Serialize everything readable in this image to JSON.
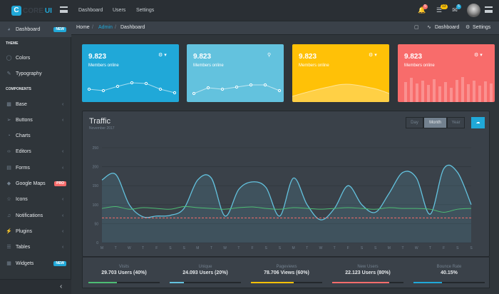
{
  "header": {
    "logo_mark": "C",
    "logo_text_1": "CORE",
    "logo_text_2": "UI",
    "nav": [
      "Dashboard",
      "Users",
      "Settings"
    ],
    "badges": {
      "bell": "5",
      "list": "13",
      "mail": "5"
    }
  },
  "sidebar": {
    "items": [
      {
        "label": "Dashboard",
        "icon": "speedometer-icon",
        "tag": "NEW",
        "tag_color": "#20a8d8"
      },
      {
        "label": "Colors",
        "icon": "drop-icon"
      },
      {
        "label": "Typography",
        "icon": "pencil-icon"
      },
      {
        "label": "Base",
        "icon": "puzzle-icon"
      },
      {
        "label": "Buttons",
        "icon": "cursor-icon"
      },
      {
        "label": "Charts",
        "icon": "pie-chart-icon"
      },
      {
        "label": "Editors",
        "icon": "code-icon"
      },
      {
        "label": "Forms",
        "icon": "note-icon"
      },
      {
        "label": "Google Maps",
        "icon": "map-icon",
        "tag": "PRO",
        "tag_color": "#f86c6b"
      },
      {
        "label": "Icons",
        "icon": "star-icon"
      },
      {
        "label": "Notifications",
        "icon": "bell-icon"
      },
      {
        "label": "Plugins",
        "icon": "energy-icon"
      },
      {
        "label": "Tables",
        "icon": "list-icon"
      },
      {
        "label": "Widgets",
        "icon": "calculator-icon",
        "tag": "NEW",
        "tag_color": "#20a8d8"
      }
    ],
    "section_theme": "THEME",
    "section_components": "COMPONENTS"
  },
  "breadcrumb": {
    "home": "Home",
    "admin": "Admin",
    "current": "Dashboard",
    "menu_dashboard": "Dashboard",
    "menu_settings": "Settings"
  },
  "cards": [
    {
      "value": "9.823",
      "label": "Members online",
      "color": "#20a8d8"
    },
    {
      "value": "9.823",
      "label": "Members online",
      "color": "#63c2de"
    },
    {
      "value": "9.823",
      "label": "Members online",
      "color": "#ffc107"
    },
    {
      "value": "9.823",
      "label": "Members online",
      "color": "#f86c6b"
    }
  ],
  "traffic": {
    "title": "Traffic",
    "subtitle": "November 2017",
    "buttons": [
      "Day",
      "Month",
      "Year"
    ],
    "active": "Month"
  },
  "chart_data": {
    "type": "line",
    "title": "Traffic",
    "x": [
      "M",
      "T",
      "W",
      "T",
      "F",
      "S",
      "S",
      "M",
      "T",
      "W",
      "T",
      "F",
      "S",
      "S",
      "M",
      "T",
      "W",
      "T",
      "F",
      "S",
      "S",
      "M",
      "T",
      "W",
      "T",
      "F",
      "S",
      "S"
    ],
    "ylim": [
      0,
      250
    ],
    "yticks": [
      0,
      50,
      100,
      150,
      200,
      250
    ],
    "series": [
      {
        "color": "#63c2de",
        "fill": true,
        "values": [
          165,
          180,
          100,
          68,
          70,
          72,
          90,
          165,
          170,
          70,
          140,
          160,
          145,
          70,
          170,
          100,
          60,
          90,
          150,
          100,
          80,
          130,
          185,
          170,
          75,
          195,
          185,
          100
        ]
      },
      {
        "color": "#4dbd74",
        "fill": false,
        "values": [
          90,
          95,
          88,
          92,
          90,
          88,
          95,
          92,
          90,
          88,
          92,
          94,
          90,
          88,
          92,
          90,
          88,
          90,
          92,
          90,
          88,
          92,
          90,
          90,
          88,
          80,
          88,
          90
        ]
      },
      {
        "color": "#f86c6b",
        "fill": false,
        "dashed": true,
        "values": [
          65,
          65,
          65,
          65,
          65,
          65,
          65,
          65,
          65,
          65,
          65,
          65,
          65,
          65,
          65,
          65,
          65,
          65,
          65,
          65,
          65,
          65,
          65,
          65,
          65,
          65,
          65,
          65
        ]
      }
    ]
  },
  "stats": [
    {
      "label": "Visits",
      "value": "29.703 Users (40%)",
      "percent": 40,
      "color": "#4dbd74"
    },
    {
      "label": "Unique",
      "value": "24.093 Users (20%)",
      "percent": 20,
      "color": "#63c2de"
    },
    {
      "label": "Pageviews",
      "value": "78.706 Views (60%)",
      "percent": 60,
      "color": "#ffc107"
    },
    {
      "label": "New Users",
      "value": "22.123 Users (80%)",
      "percent": 80,
      "color": "#f86c6b"
    },
    {
      "label": "Bounce Rate",
      "value": "40.15%",
      "percent": 40,
      "color": "#20a8d8"
    }
  ]
}
